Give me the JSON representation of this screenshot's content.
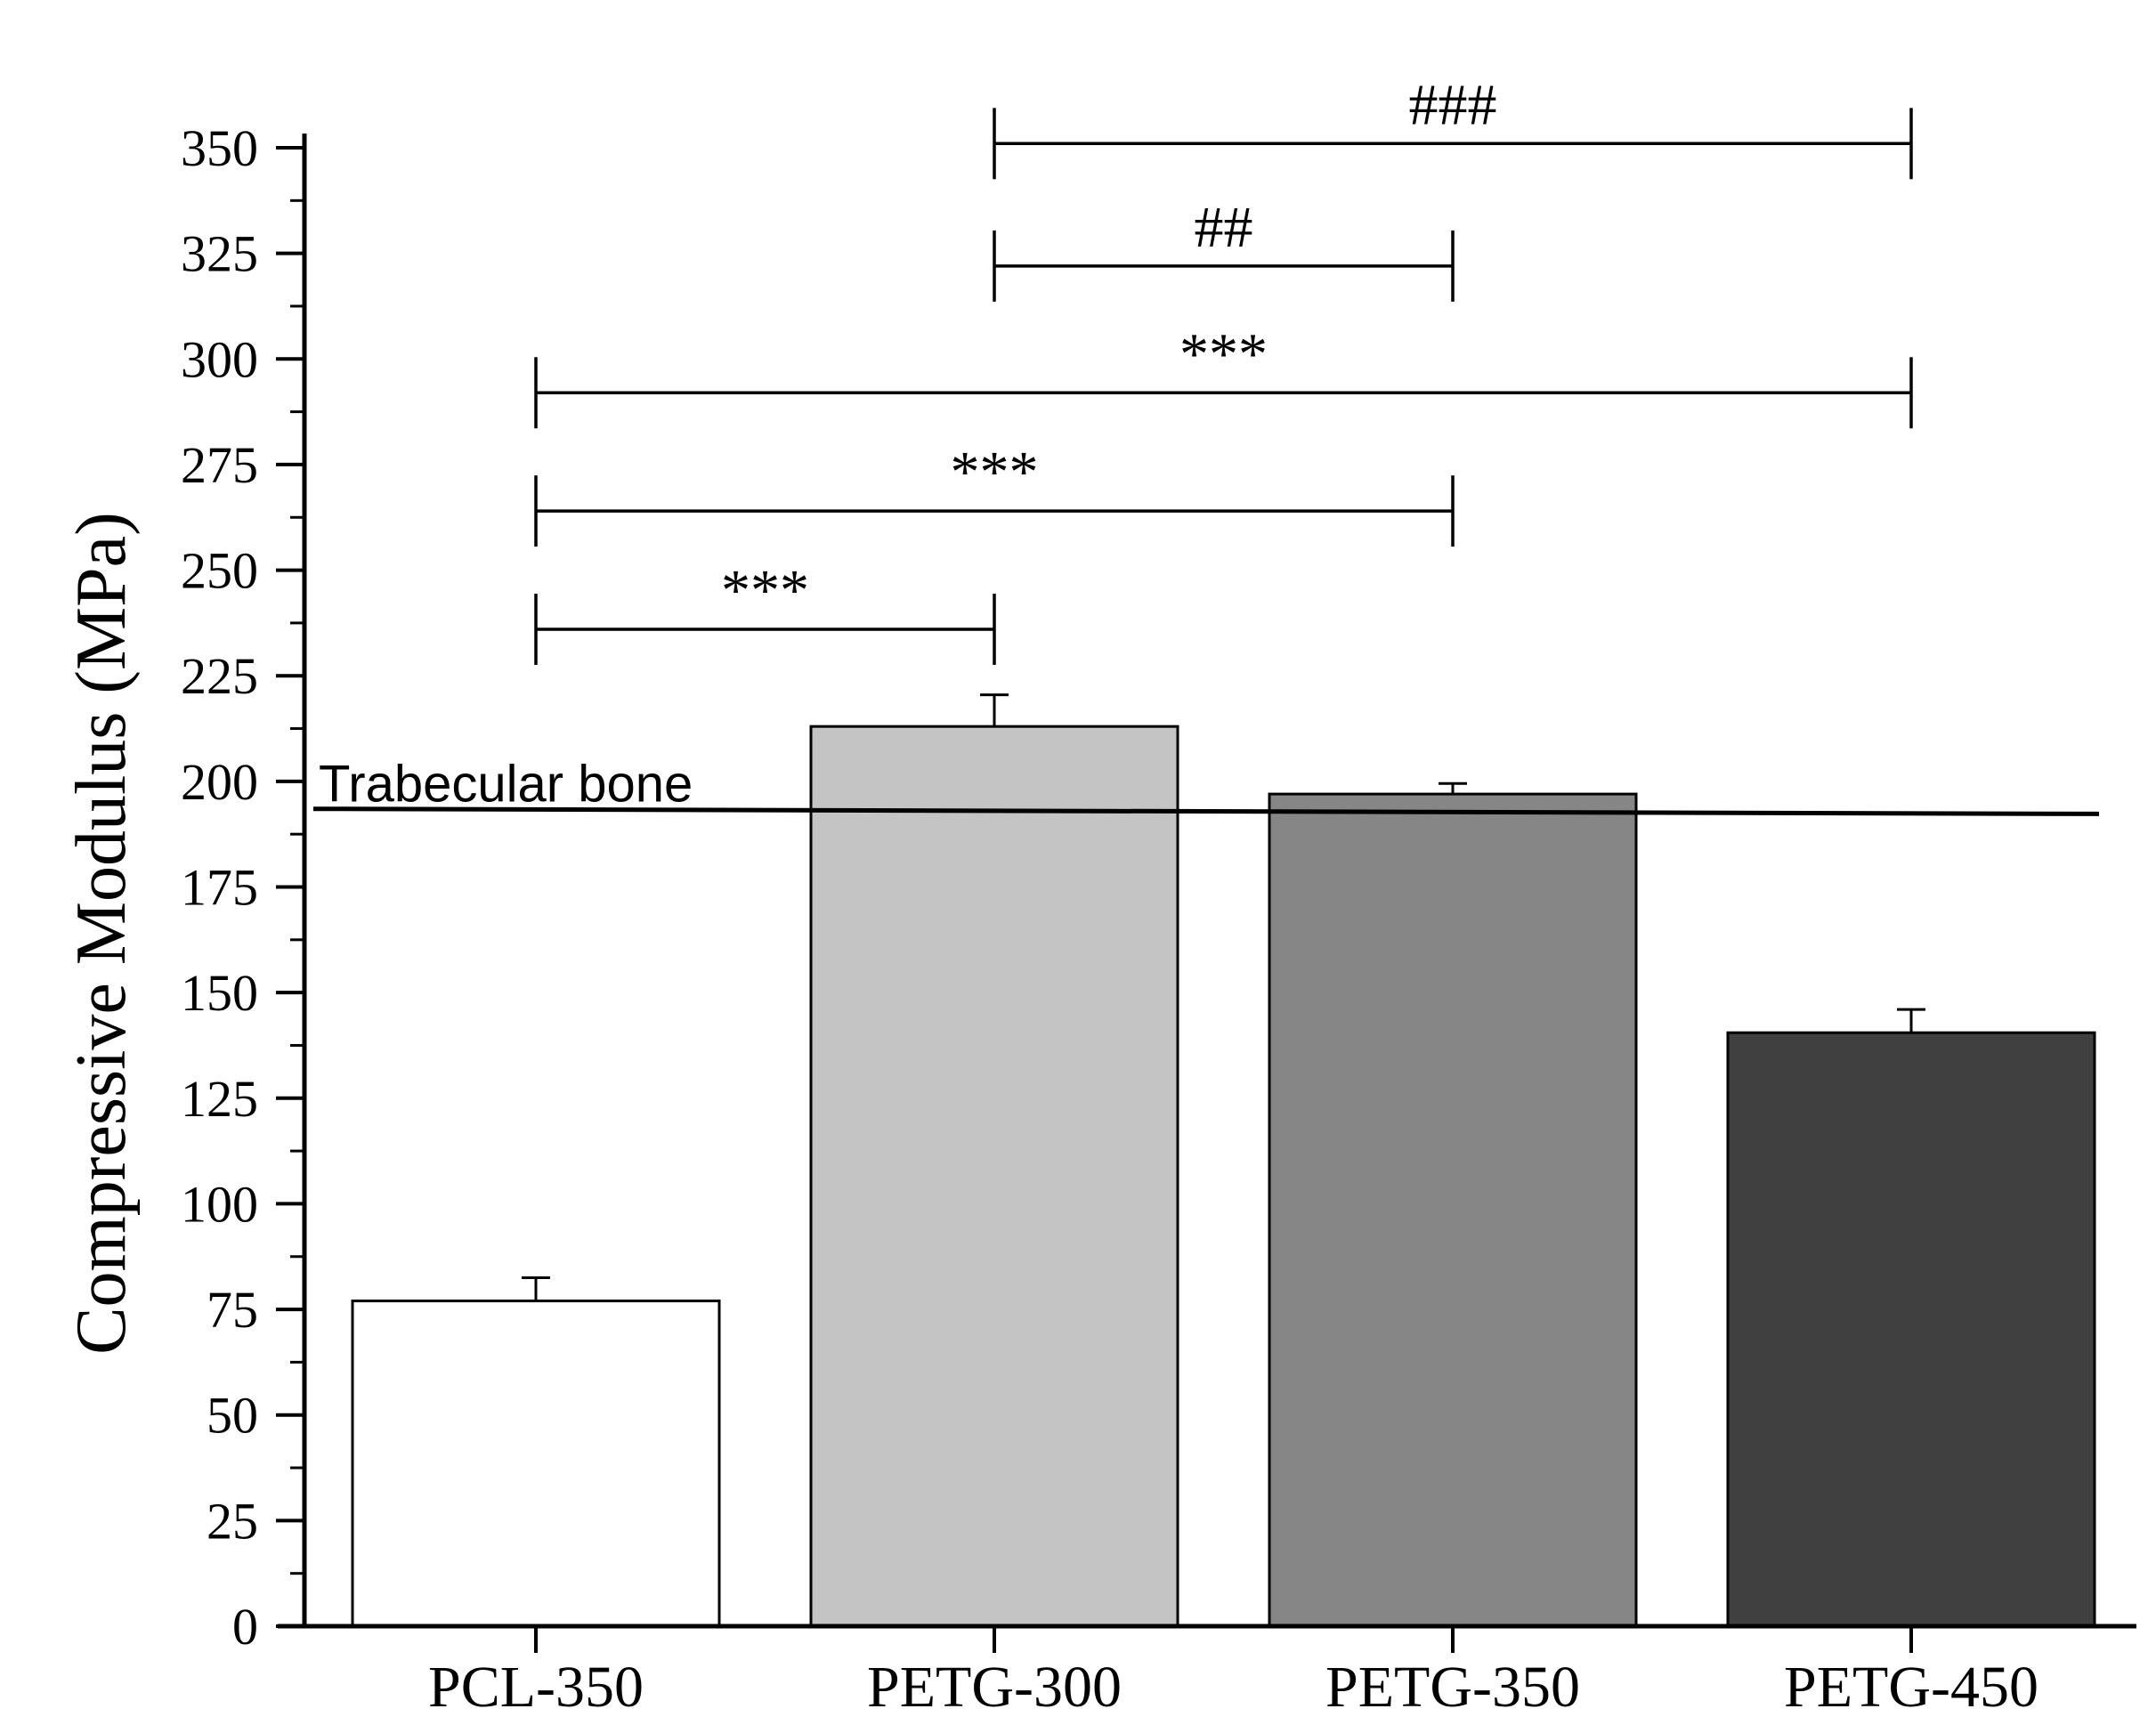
{
  "chart_data": {
    "type": "bar",
    "title": "",
    "xlabel": "",
    "ylabel": "Compressive Modulus (MPa)",
    "ylim": [
      0,
      350
    ],
    "yticks": [
      0,
      25,
      50,
      75,
      100,
      125,
      150,
      175,
      200,
      225,
      250,
      275,
      300,
      325,
      350
    ],
    "categories": [
      "PCL-350",
      "PETG-300",
      "PETG-350",
      "PETG-450"
    ],
    "values": [
      77,
      213,
      197,
      140.5
    ],
    "errors": [
      5.5,
      7.5,
      2.5,
      5.5
    ],
    "bar_colors": [
      "#ffffff",
      "#c4c4c4",
      "#868686",
      "#404040"
    ],
    "reference_line": {
      "label": "Trabecular bone",
      "value_start": 193.5,
      "value_end": 192.3
    },
    "significance": [
      {
        "from": 0,
        "to": 1,
        "y": 236,
        "label": "***"
      },
      {
        "from": 0,
        "to": 2,
        "y": 264,
        "label": "***"
      },
      {
        "from": 0,
        "to": 3,
        "y": 292,
        "label": "***"
      },
      {
        "from": 1,
        "to": 2,
        "y": 322,
        "label": "##"
      },
      {
        "from": 1,
        "to": 3,
        "y": 351,
        "label": "###"
      }
    ]
  }
}
